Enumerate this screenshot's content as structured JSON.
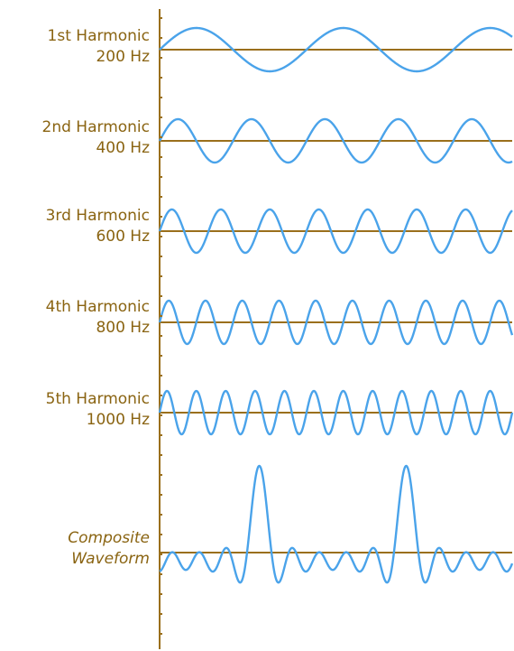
{
  "diagram": {
    "rows": [
      {
        "id": "h1",
        "label": "1st Harmonic",
        "frequency_label": "200 Hz",
        "harmonic": 1
      },
      {
        "id": "h2",
        "label": "2nd Harmonic",
        "frequency_label": "400 Hz",
        "harmonic": 2
      },
      {
        "id": "h3",
        "label": "3rd Harmonic",
        "frequency_label": "600 Hz",
        "harmonic": 3
      },
      {
        "id": "h4",
        "label": "4th Harmonic",
        "frequency_label": "800 Hz",
        "harmonic": 4
      },
      {
        "id": "h5",
        "label": "5th Harmonic",
        "frequency_label": "1000 Hz",
        "harmonic": 5
      }
    ],
    "composite": {
      "label_line1": "Composite",
      "label_line2": "Waveform"
    },
    "fundamental_cycles_shown": 2.4,
    "colors": {
      "wave": "#4aa3ea",
      "baseline": "#9a6f1c",
      "axis": "#9a6f1c",
      "label": "#8a6412"
    }
  }
}
